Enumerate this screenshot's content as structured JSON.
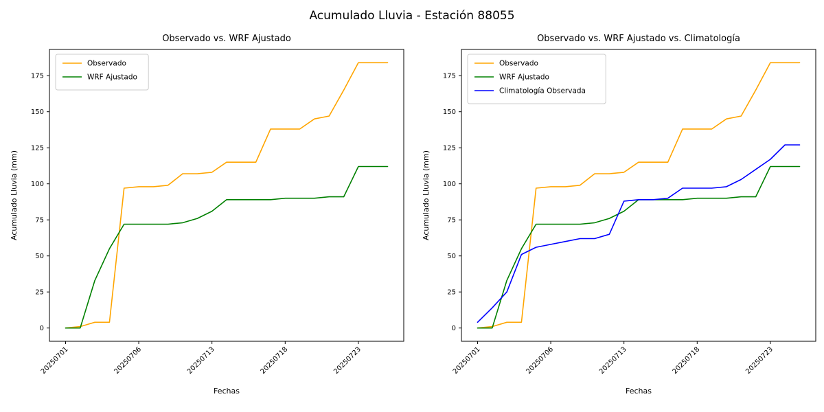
{
  "figure": {
    "title": "Acumulado Lluvia - Estación 88055",
    "background": "#ffffff"
  },
  "chart_data": [
    {
      "type": "line",
      "title": "Observado vs. WRF Ajustado",
      "xlabel": "Fechas",
      "ylabel": "Acumulado Lluvia (mm)",
      "legend_position": "upper left",
      "grid": false,
      "ylim": [
        -9.2,
        193.2
      ],
      "yticks": [
        0,
        25,
        50,
        75,
        100,
        125,
        150,
        175
      ],
      "x_dates": [
        "20250701",
        "20250702",
        "20250703",
        "20250704",
        "20250705",
        "20250706",
        "20250707",
        "20250708",
        "20250709",
        "20250710",
        "20250713",
        "20250714",
        "20250715",
        "20250716",
        "20250717",
        "20250718",
        "20250719",
        "20250720",
        "20250721",
        "20250722",
        "20250723",
        "20250724",
        "20250725"
      ],
      "xtick_indices": [
        0,
        5,
        10,
        15,
        20
      ],
      "xtick_labels": [
        "20250701",
        "20250706",
        "20250713",
        "20250718",
        "20250723"
      ],
      "series": [
        {
          "name": "Observado",
          "color": "#ffa500",
          "values": [
            0,
            1,
            4,
            4,
            97,
            98,
            98,
            99,
            107,
            107,
            108,
            115,
            115,
            115,
            138,
            138,
            138,
            145,
            147,
            165,
            184,
            184,
            184
          ]
        },
        {
          "name": "WRF Ajustado",
          "color": "#008000",
          "values": [
            0,
            0,
            33,
            55,
            72,
            72,
            72,
            72,
            73,
            76,
            81,
            89,
            89,
            89,
            89,
            90,
            90,
            90,
            91,
            91,
            112,
            112,
            112
          ]
        }
      ]
    },
    {
      "type": "line",
      "title": "Observado vs. WRF Ajustado vs. Climatología",
      "xlabel": "Fechas",
      "ylabel": "Acumulado Lluvia (mm)",
      "legend_position": "upper left",
      "grid": false,
      "ylim": [
        -9.2,
        193.2
      ],
      "yticks": [
        0,
        25,
        50,
        75,
        100,
        125,
        150,
        175
      ],
      "x_dates": [
        "20250701",
        "20250702",
        "20250703",
        "20250704",
        "20250705",
        "20250706",
        "20250707",
        "20250708",
        "20250709",
        "20250710",
        "20250713",
        "20250714",
        "20250715",
        "20250716",
        "20250717",
        "20250718",
        "20250719",
        "20250720",
        "20250721",
        "20250722",
        "20250723",
        "20250724",
        "20250725"
      ],
      "xtick_indices": [
        0,
        5,
        10,
        15,
        20
      ],
      "xtick_labels": [
        "20250701",
        "20250706",
        "20250713",
        "20250718",
        "20250723"
      ],
      "series": [
        {
          "name": "Observado",
          "color": "#ffa500",
          "values": [
            0,
            1,
            4,
            4,
            97,
            98,
            98,
            99,
            107,
            107,
            108,
            115,
            115,
            115,
            138,
            138,
            138,
            145,
            147,
            165,
            184,
            184,
            184
          ]
        },
        {
          "name": "WRF Ajustado",
          "color": "#008000",
          "values": [
            0,
            0,
            33,
            55,
            72,
            72,
            72,
            72,
            73,
            76,
            81,
            89,
            89,
            89,
            89,
            90,
            90,
            90,
            91,
            91,
            112,
            112,
            112
          ]
        },
        {
          "name": "Climatología Observada",
          "color": "#0000ff",
          "values": [
            4,
            14,
            25,
            51,
            56,
            58,
            60,
            62,
            62,
            65,
            88,
            89,
            89,
            90,
            97,
            97,
            97,
            98,
            103,
            110,
            117,
            127,
            127
          ]
        }
      ]
    }
  ]
}
